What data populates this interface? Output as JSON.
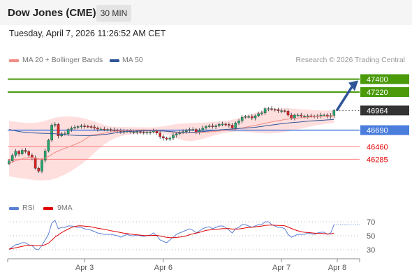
{
  "header": {
    "title": "Dow Jones (CME)",
    "timeframe": "30 MIN"
  },
  "datetime": "Tuesday, April 7, 2026 11:26:52 AM CET",
  "legend": [
    {
      "label": "MA 20 + Bollinger Bands",
      "color": "#f28b82"
    },
    {
      "label": "MA 50",
      "color": "#2f5597"
    }
  ],
  "credit": "Research © 2026 Trading Central",
  "rsi_legend": [
    {
      "label": "RSI",
      "color": "#5b7fd6"
    },
    {
      "label": "9MA",
      "color": "#e00000"
    }
  ],
  "colors": {
    "resistance": "#4a9a0a",
    "support": "#ff8080",
    "pivot": "#4a7ddc",
    "current": "#333333",
    "arrow": "#2f5597",
    "up": "#22a86e",
    "down": "#e02020"
  },
  "chart_data": [
    {
      "type": "candlestick",
      "title": "Dow Jones (CME)",
      "ylim": [
        45900,
        47550
      ],
      "x_ticks": [
        "Apr 3",
        "Apr 6",
        "Apr 7",
        "Apr 8"
      ],
      "current_price": 46964,
      "levels": [
        {
          "value": 47400,
          "role": "resistance",
          "label": "47400"
        },
        {
          "value": 47220,
          "role": "resistance",
          "label": "47220"
        },
        {
          "value": 46964,
          "role": "current",
          "label": "46964"
        },
        {
          "value": 46690,
          "role": "pivot",
          "label": "46690"
        },
        {
          "value": 46460,
          "role": "support",
          "label": "46460"
        },
        {
          "value": 46285,
          "role": "support",
          "label": "46285"
        }
      ],
      "close": [
        46263,
        46340,
        46395,
        46360,
        46410,
        46392,
        46343,
        46306,
        46160,
        46120,
        46270,
        46400,
        46551,
        46760,
        46770,
        46610,
        46640,
        46640,
        46700,
        46720,
        46730,
        46740,
        46750,
        46745,
        46740,
        46735,
        46720,
        46705,
        46705,
        46700,
        46700,
        46695,
        46690,
        46685,
        46670,
        46675,
        46680,
        46665,
        46665,
        46670,
        46660,
        46655,
        46660,
        46665,
        46680,
        46650,
        46600,
        46580,
        46565,
        46580,
        46620,
        46640,
        46660,
        46670,
        46690,
        46700,
        46700,
        46660,
        46690,
        46720,
        46740,
        46750,
        46740,
        46750,
        46770,
        46775,
        46770,
        46760,
        46720,
        46790,
        46820,
        46870,
        46880,
        46880,
        46860,
        46890,
        46920,
        46930,
        46990,
        46990,
        46980,
        46975,
        46960,
        46960,
        46955,
        46900,
        46860,
        46900,
        46900,
        46885,
        46885,
        46890,
        46885,
        46880,
        46890,
        46900,
        46900,
        46880,
        46894,
        46964
      ],
      "ma20": [
        46230,
        46248,
        46265,
        46278,
        46292,
        46303,
        46309,
        46310,
        46300,
        46290,
        46292,
        46304,
        46324,
        46352,
        46380,
        46400,
        46420,
        46438,
        46455,
        46472,
        46490,
        46510,
        46530,
        46560,
        46590,
        46615,
        46625,
        46632,
        46640,
        46648,
        46656,
        46664,
        46671,
        46676,
        46680,
        46683,
        46686,
        46688,
        46690,
        46692,
        46693,
        46693,
        46692,
        46690,
        46690,
        46688,
        46685,
        46680,
        46673,
        46667,
        46662,
        46657,
        46655,
        46653,
        46653,
        46655,
        46656,
        46656,
        46657,
        46660,
        46663,
        46666,
        46670,
        46674,
        46679,
        46685,
        46690,
        46694,
        46698,
        46705,
        46712,
        46720,
        46730,
        46740,
        46750,
        46758,
        46767,
        46775,
        46785,
        46795,
        46805,
        46814,
        46822,
        46830,
        46838,
        46843,
        46848,
        46853,
        46858,
        46862,
        46866,
        46870,
        46874,
        46878,
        46880,
        46882,
        46884,
        46886,
        46888,
        46892
      ],
      "ma50": [
        46700,
        46690,
        46680,
        46672,
        46665,
        46660,
        46655,
        46652,
        46650,
        46648,
        46646,
        46645,
        46644,
        46642,
        46640,
        46636,
        46632,
        46628,
        46624,
        46620,
        46618,
        46616,
        46615,
        46614,
        46614,
        46615,
        46617,
        46620,
        46625,
        46630,
        46636,
        46642,
        46650,
        46656,
        46662,
        46666,
        46670,
        46673,
        46675,
        46677,
        46678,
        46679,
        46680,
        46680,
        46680,
        46680,
        46679,
        46677,
        46675,
        46672,
        46668,
        46664,
        46660,
        46657,
        46656,
        46657,
        46660,
        46663,
        46667,
        46671,
        46675,
        46679,
        46683,
        46688,
        46693,
        46697,
        46701,
        46704,
        46707,
        46710,
        46713,
        46716,
        46719,
        46722,
        46726,
        46730,
        46736,
        46742,
        46749,
        46756,
        46762,
        46768,
        46774,
        46779,
        46784,
        46789,
        46794,
        46798,
        46802,
        46806,
        46810,
        46814,
        46818,
        46821,
        46824,
        46827,
        46830,
        46833,
        46836,
        46840
      ],
      "bb_upper": [
        46820,
        46812,
        46805,
        46800,
        46795,
        46792,
        46790,
        46790,
        46792,
        46798,
        46808,
        46820,
        46834,
        46848,
        46862,
        46872,
        46878,
        46880,
        46880,
        46878,
        46875,
        46870,
        46862,
        46852,
        46840,
        46826,
        46810,
        46794,
        46778,
        46762,
        46750,
        46742,
        46738,
        46736,
        46735,
        46734,
        46733,
        46732,
        46732,
        46731,
        46730,
        46730,
        46730,
        46730,
        46730,
        46733,
        46738,
        46745,
        46752,
        46760,
        46768,
        46775,
        46780,
        46784,
        46786,
        46788,
        46790,
        46792,
        46794,
        46796,
        46798,
        46800,
        46804,
        46808,
        46812,
        46816,
        46820,
        46826,
        46834,
        46846,
        46860,
        46876,
        46890,
        46904,
        46918,
        46932,
        46946,
        46956,
        46964,
        46972,
        46978,
        46984,
        46990,
        46994,
        46998,
        46995,
        46992,
        46988,
        46985,
        46980,
        46977,
        46974,
        46970,
        46968,
        46966,
        46965,
        46964,
        46964,
        46964,
        46964
      ],
      "bb_lower": [
        46050,
        46040,
        46032,
        46025,
        46018,
        46012,
        46006,
        46000,
        45995,
        45992,
        45990,
        45992,
        45996,
        46004,
        46016,
        46032,
        46052,
        46074,
        46098,
        46124,
        46152,
        46182,
        46214,
        46250,
        46290,
        46330,
        46372,
        46414,
        46454,
        46490,
        46520,
        46550,
        46574,
        46592,
        46606,
        46616,
        46624,
        46630,
        46634,
        46638,
        46641,
        46644,
        46646,
        46648,
        46649,
        46648,
        46645,
        46638,
        46628,
        46614,
        46596,
        46578,
        46562,
        46550,
        46542,
        46538,
        46540,
        46546,
        46556,
        46568,
        46582,
        46596,
        46610,
        46624,
        46636,
        46646,
        46654,
        46660,
        46664,
        46668,
        46670,
        46670,
        46668,
        46665,
        46661,
        46656,
        46652,
        46648,
        46646,
        46645,
        46646,
        46648,
        46652,
        46658,
        46664,
        46672,
        46682,
        46692,
        46702,
        46712,
        46722,
        46732,
        46742,
        46752,
        46760,
        46767,
        46774,
        46780,
        46786,
        46792
      ]
    },
    {
      "type": "line",
      "title": "RSI",
      "ylim": [
        22,
        78
      ],
      "y_ticks": [
        "70",
        "50",
        "30"
      ],
      "series": [
        {
          "name": "RSI",
          "values": [
            30,
            34,
            37,
            38,
            40,
            40,
            37,
            36,
            31,
            30,
            36,
            44,
            52,
            68,
            72,
            60,
            62,
            62,
            64,
            64,
            63,
            62,
            62,
            60,
            59,
            58,
            56,
            54,
            53,
            52,
            52,
            52,
            51,
            50,
            48,
            50,
            52,
            50,
            50,
            51,
            50,
            49,
            50,
            51,
            54,
            50,
            44,
            42,
            40,
            44,
            48,
            52,
            54,
            56,
            58,
            60,
            58,
            54,
            57,
            60,
            62,
            63,
            60,
            62,
            64,
            64,
            62,
            58,
            54,
            60,
            62,
            66,
            66,
            64,
            62,
            64,
            66,
            66,
            70,
            70,
            66,
            64,
            62,
            62,
            60,
            52,
            48,
            50,
            52,
            52,
            52,
            54,
            53,
            52,
            54,
            55,
            55,
            52,
            54,
            66
          ]
        },
        {
          "name": "9MA",
          "values": [
            31,
            31.8,
            32.8,
            33.8,
            34.9,
            35.8,
            36.1,
            36.4,
            35.8,
            35.5,
            35.8,
            37.1,
            39.4,
            43.6,
            48.2,
            51.2,
            54.5,
            57.1,
            59.5,
            61.8,
            63.3,
            64.1,
            64.2,
            63.8,
            63.4,
            62.8,
            61.8,
            60.8,
            60,
            59.2,
            58.3,
            57.2,
            56.4,
            55.6,
            54.5,
            53.7,
            53.1,
            52.4,
            51.8,
            51.4,
            50.9,
            50.4,
            50.3,
            50.2,
            50.6,
            50.5,
            49.8,
            48.8,
            47.7,
            47.3,
            47.3,
            47.6,
            48.1,
            48.7,
            49.9,
            51.5,
            52.8,
            53.8,
            54.9,
            56.3,
            57.7,
            58.3,
            58.7,
            59.2,
            59.6,
            60.1,
            60.2,
            60.2,
            59.6,
            59.6,
            59.8,
            60.4,
            61.2,
            61.9,
            62.2,
            62.7,
            63.4,
            63.9,
            64.7,
            65.3,
            65.2,
            65.1,
            64.8,
            64.6,
            64.3,
            62.5,
            60.5,
            58.6,
            57.1,
            55.8,
            55,
            54.6,
            54.3,
            53.8,
            53.4,
            53.3,
            53.1,
            52.7,
            52.6,
            53.8
          ]
        }
      ]
    }
  ]
}
